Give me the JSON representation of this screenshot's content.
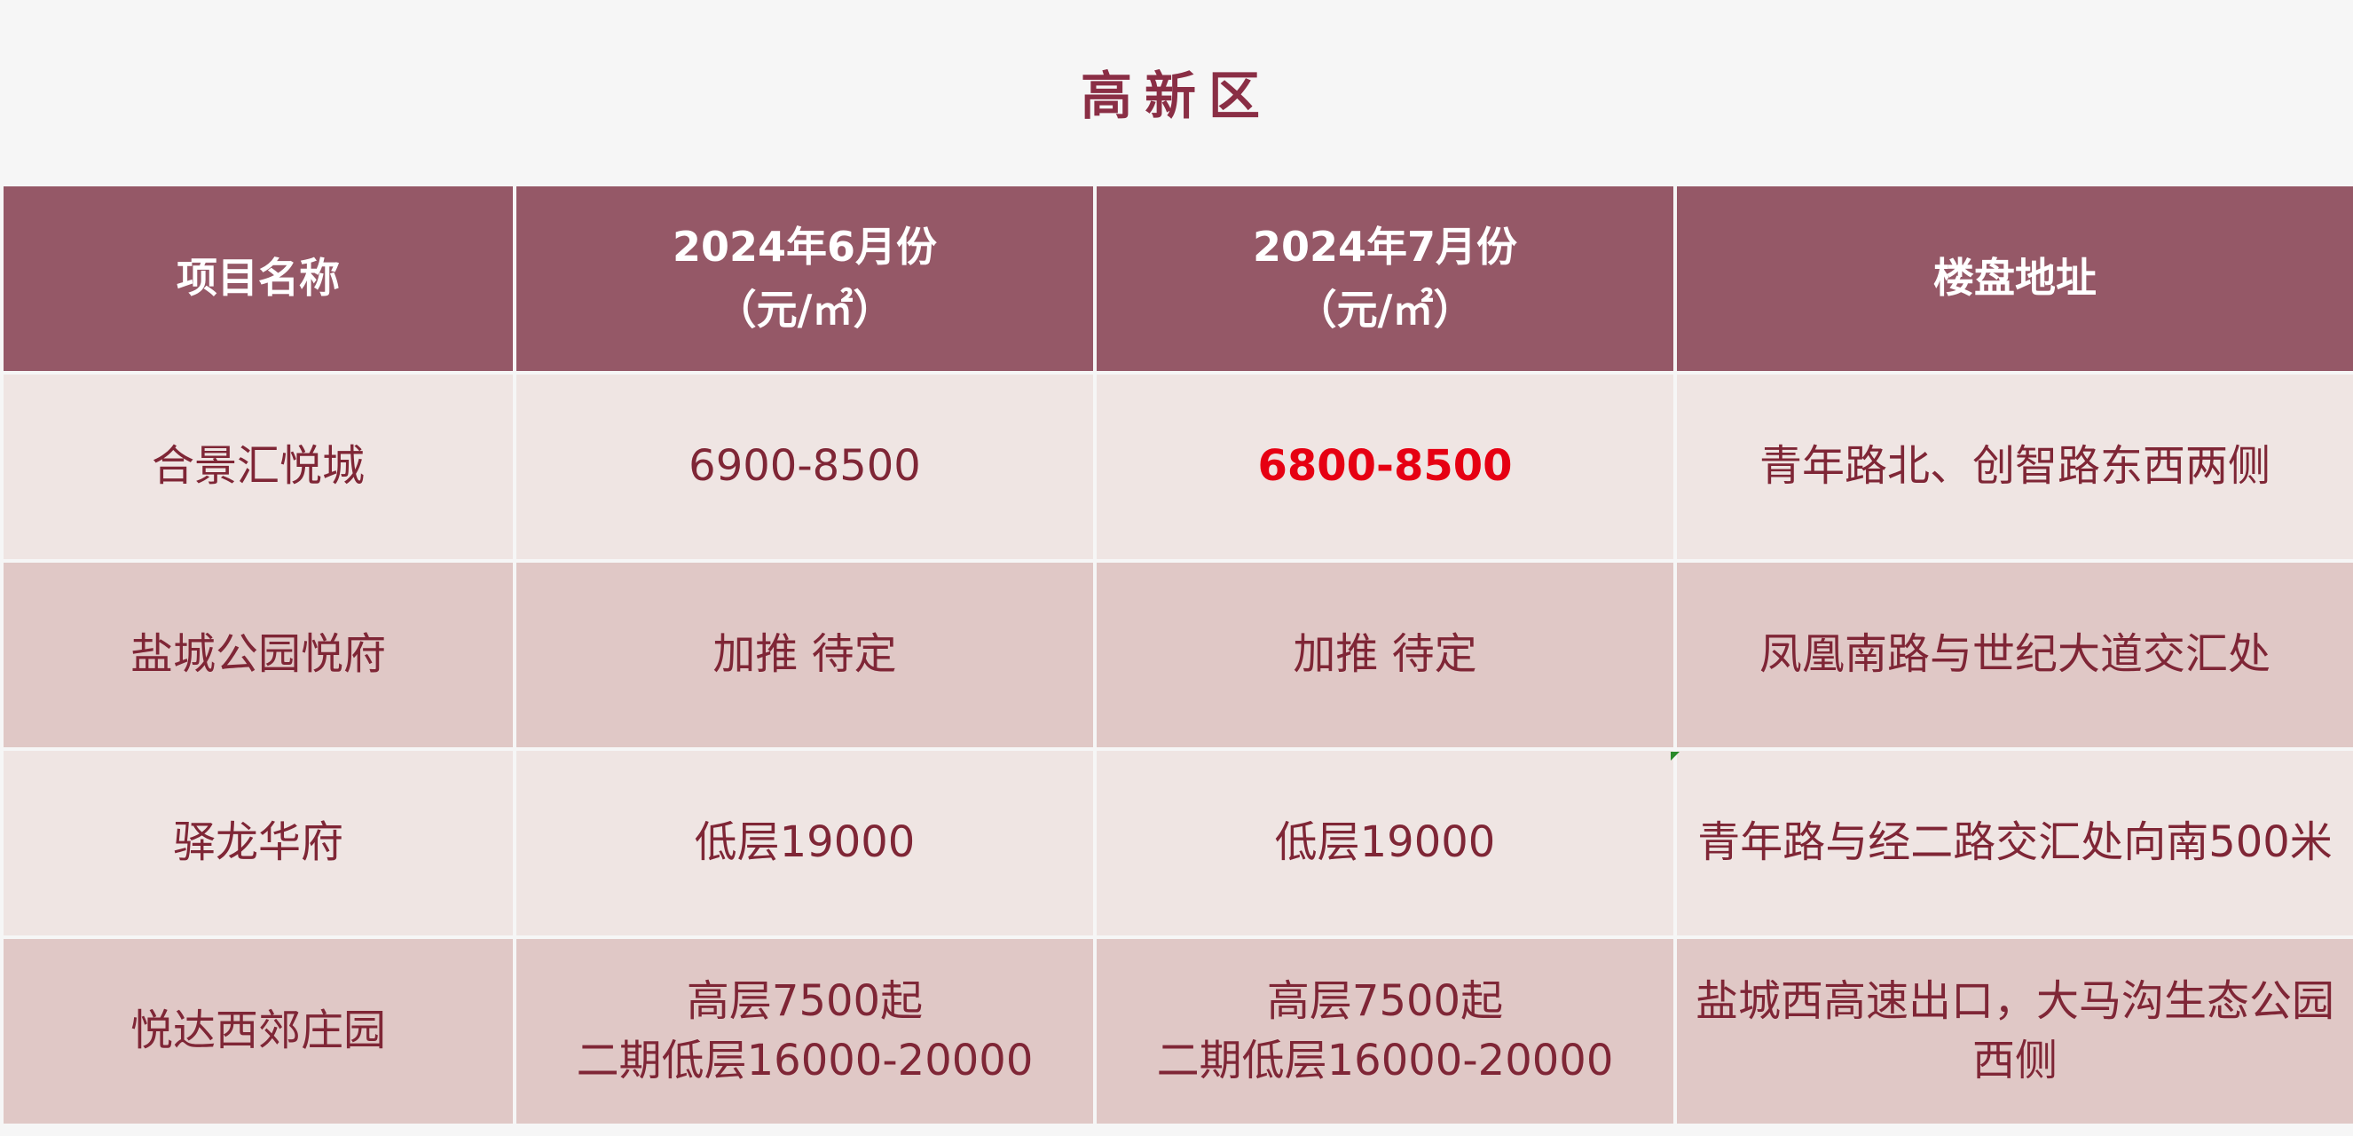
{
  "title": "高新区",
  "headers": {
    "name": "项目名称",
    "june_line1": "2024年6月份",
    "june_line2": "（元/㎡）",
    "july_line1": "2024年7月份",
    "july_line2": "（元/㎡）",
    "address": "楼盘地址"
  },
  "rows": [
    {
      "name": "合景汇悦城",
      "june": "6900-8500",
      "july": "6800-8500",
      "address": "青年路北、创智路东西两侧"
    },
    {
      "name": "盐城公园悦府",
      "june": "加推 待定",
      "july": "加推 待定",
      "address": "凤凰南路与世纪大道交汇处"
    },
    {
      "name": "驿龙华府",
      "june": "低层19000",
      "july": "低层19000",
      "address": "青年路与经二路交汇处向南500米"
    },
    {
      "name": "悦达西郊庄园",
      "june_line1": "高层7500起",
      "june_line2": "二期低层16000-20000",
      "july_line1": "高层7500起",
      "july_line2": "二期低层16000-20000",
      "address": "盐城西高速出口，大马沟生态公园西侧"
    }
  ],
  "colors": {
    "header_bg": "#955867",
    "title_text": "#8a2e45",
    "cell_text": "#7f2636",
    "row_light": "#efe5e3",
    "row_dark": "#e0c8c6",
    "highlight": "#e60012"
  }
}
